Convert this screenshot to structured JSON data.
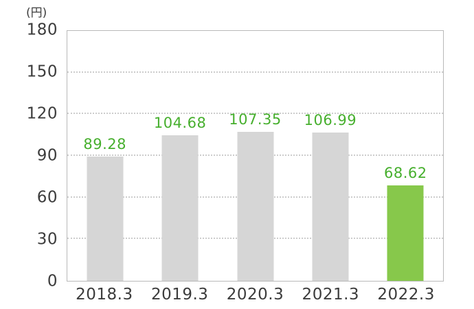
{
  "chart_data": {
    "type": "bar",
    "title": "",
    "unit_label": "(円)",
    "categories": [
      "2018.3",
      "2019.3",
      "2020.3",
      "2021.3",
      "2022.3"
    ],
    "values": [
      89.28,
      104.68,
      107.35,
      106.99,
      68.62
    ],
    "value_labels": [
      "89.28",
      "104.68",
      "107.35",
      "106.99",
      "68.62"
    ],
    "ylim": [
      0,
      180
    ],
    "yticks": [
      0,
      30,
      60,
      90,
      120,
      150,
      180
    ],
    "ytick_interval": 30,
    "grid": "horizontal-dotted",
    "legend": "none",
    "highlight_index": 4,
    "colors": {
      "bar_default": "#d6d6d6",
      "bar_highlight": "#87c84b",
      "value_label": "#46af2d",
      "axis_text": "#3c3c3c",
      "plot_border": "#b9b9b9",
      "gridline": "#cccccc"
    }
  }
}
